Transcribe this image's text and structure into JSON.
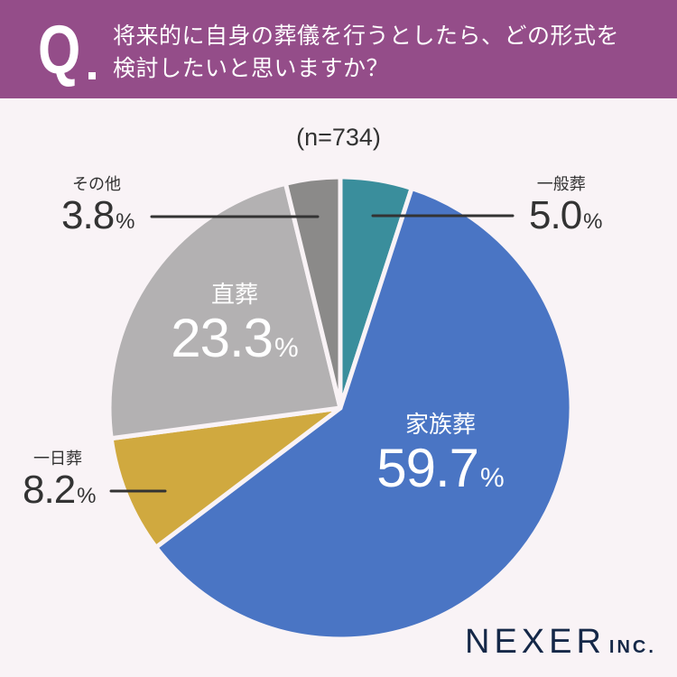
{
  "header": {
    "q_mark": "Q",
    "question_line1": "将来的に自身の葬儀を行うとしたら、どの形式を",
    "question_line2": "検討したいと思いますか？",
    "background_color": "#944d89"
  },
  "sample": "(n=734)",
  "labels": {
    "ippan": {
      "name": "一般葬",
      "value": "5.0",
      "unit": "%"
    },
    "kazoku": {
      "name": "家族葬",
      "value": "59.7",
      "unit": "%"
    },
    "ichinichi": {
      "name": "一日葬",
      "value": "8.2",
      "unit": "%"
    },
    "chokuso": {
      "name": "直葬",
      "value": "23.3",
      "unit": "%"
    },
    "sonota": {
      "name": "その他",
      "value": "3.8",
      "unit": "%"
    }
  },
  "logo": {
    "main": "NEXER",
    "suffix": "INC."
  },
  "chart_data": {
    "type": "pie",
    "title": "将来的に自身の葬儀を行うとしたら、どの形式を検討したいと思いますか？",
    "subtitle": "(n=734)",
    "start_angle": "12 o'clock, clockwise",
    "categories": [
      "一般葬",
      "家族葬",
      "一日葬",
      "直葬",
      "その他"
    ],
    "values": [
      5.0,
      59.7,
      8.2,
      23.3,
      3.8
    ],
    "unit": "%",
    "colors": [
      "#3a8e9c",
      "#4a75c4",
      "#d0a93f",
      "#b3b1b2",
      "#8b8a89"
    ],
    "legend": "none (direct labels)"
  }
}
